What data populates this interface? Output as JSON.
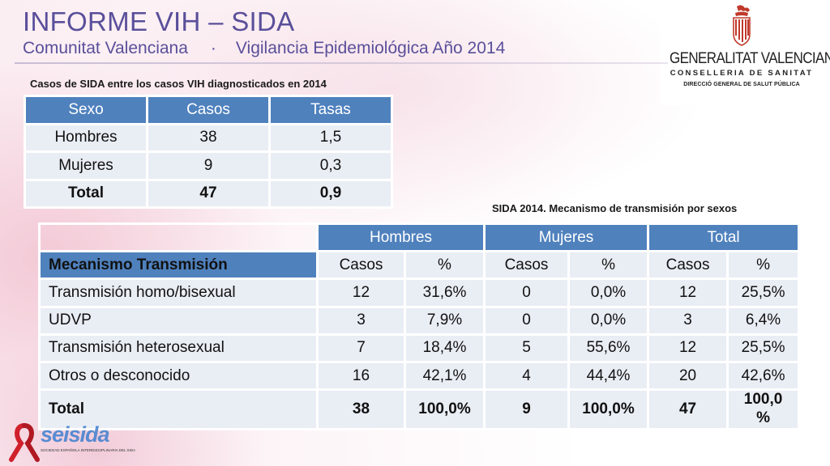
{
  "header": {
    "title": "INFORME VIH – SIDA",
    "subtitle_left": "Comunitat Valenciana",
    "subtitle_sep": "·",
    "subtitle_right": "Vigilancia Epidemiológica Año 2014"
  },
  "logo": {
    "name": "GENERALITAT VALENCIANA",
    "dept": "CONSELLERIA DE SANITAT",
    "sub": "DIRECCIÓ GENERAL DE SALUT PÚBLICA"
  },
  "table1": {
    "caption": "Casos de SIDA entre los casos VIH diagnosticados en 2014",
    "headers": [
      "Sexo",
      "Casos",
      "Tasas"
    ],
    "rows": [
      [
        "Hombres",
        "38",
        "1,5"
      ],
      [
        "Mujeres",
        "9",
        "0,3"
      ]
    ],
    "total": [
      "Total",
      "47",
      "0,9"
    ]
  },
  "table2": {
    "caption": "SIDA 2014. Mecanismo de transmisión por sexos",
    "group_headers": [
      "Hombres",
      "Mujeres",
      "Total"
    ],
    "row_header": "Mecanismo Transmisión",
    "sub_headers": [
      "Casos",
      "%",
      "Casos",
      "%",
      "Casos",
      "%"
    ],
    "rows": [
      [
        "Transmisión homo/bisexual",
        "12",
        "31,6%",
        "0",
        "0,0%",
        "12",
        "25,5%"
      ],
      [
        "UDVP",
        "3",
        "7,9%",
        "0",
        "0,0%",
        "3",
        "6,4%"
      ],
      [
        "Transmisión heterosexual",
        "7",
        "18,4%",
        "5",
        "55,6%",
        "12",
        "25,5%"
      ],
      [
        "Otros o desconocido",
        "16",
        "42,1%",
        "4",
        "44,4%",
        "20",
        "42,6%"
      ]
    ],
    "total": [
      "Total",
      "38",
      "100,0%",
      "9",
      "100,0%",
      "47",
      "100,0 %"
    ]
  },
  "footer_logo": {
    "word": "seisida",
    "sub": "SOCIEDAD ESPAÑOLA INTERDISCIPLINARIA DEL SIDA"
  },
  "colors": {
    "title": "#5a4f9a",
    "table_header": "#4f81bd",
    "table_cell": "#e9edf4",
    "ribbon": "#d0202c"
  }
}
